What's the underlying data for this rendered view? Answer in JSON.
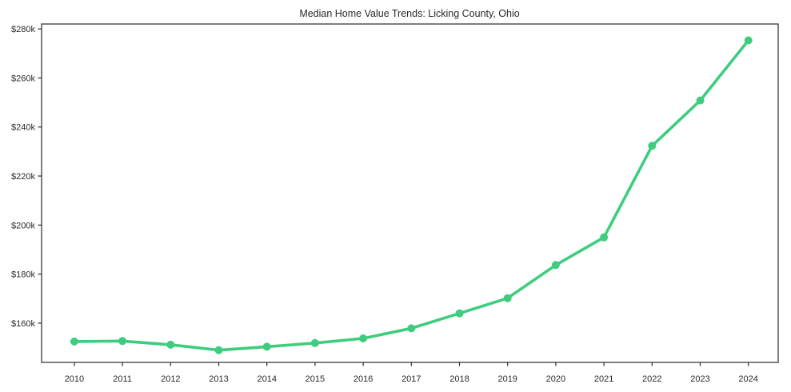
{
  "chart_data": {
    "type": "line",
    "title": "Median Home Value Trends: Licking County, Ohio",
    "xlabel": "",
    "ylabel": "",
    "x": [
      2010,
      2011,
      2012,
      2013,
      2014,
      2015,
      2016,
      2017,
      2018,
      2019,
      2020,
      2021,
      2022,
      2023,
      2024
    ],
    "x_tick_labels": [
      "2010",
      "2011",
      "2012",
      "2013",
      "2014",
      "2015",
      "2016",
      "2017",
      "2018",
      "2019",
      "2020",
      "2021",
      "2022",
      "2023",
      "2024"
    ],
    "y_ticks": [
      {
        "value": 160000,
        "label": "$160k"
      },
      {
        "value": 180000,
        "label": "$180k"
      },
      {
        "value": 200000,
        "label": "$200k"
      },
      {
        "value": 220000,
        "label": "$220k"
      },
      {
        "value": 240000,
        "label": "$240k"
      },
      {
        "value": 260000,
        "label": "$260k"
      },
      {
        "value": 280000,
        "label": "$280k"
      }
    ],
    "series": [
      {
        "name": "Median Home Value",
        "color": "#3ecd7e",
        "marker": "circle",
        "values": [
          152500,
          152700,
          151200,
          149000,
          150400,
          151900,
          153800,
          157900,
          164000,
          170200,
          183700,
          195000,
          232300,
          250800,
          275300
        ]
      }
    ],
    "xlim": [
      2009.32,
      2024.62
    ],
    "ylim": [
      144000,
      282000
    ],
    "grid": false,
    "legend": "none",
    "frame": "box",
    "colors": {
      "axis": "#2a2a2a",
      "text": "#2a2a2a",
      "background": "#ffffff"
    }
  }
}
